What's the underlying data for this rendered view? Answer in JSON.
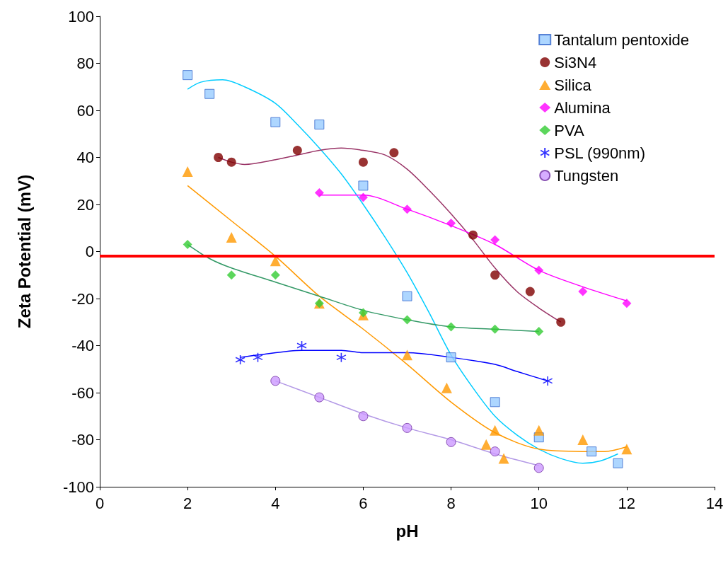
{
  "chart_data": {
    "type": "scatter",
    "xlabel": "pH",
    "ylabel": "Zeta Potential (mV)",
    "xlim": [
      0,
      14
    ],
    "xticks": [
      0,
      2,
      4,
      6,
      8,
      10,
      12,
      14
    ],
    "ylim": [
      -100,
      100
    ],
    "yticks": [
      -100,
      -80,
      -60,
      -40,
      -20,
      0,
      20,
      40,
      60,
      80,
      100
    ],
    "grid": false,
    "legend": "top right",
    "ref_lines": [
      {
        "axis": "y",
        "value": -2,
        "color": "#ff0000"
      }
    ],
    "series": [
      {
        "name": "Tantalum pentoxide",
        "color": "#99ccff",
        "marker": "square",
        "x": [
          2,
          2.5,
          4,
          5,
          6,
          7,
          8,
          9,
          10,
          11.2,
          11.8
        ],
        "values": [
          75,
          67,
          55,
          54,
          28,
          -19,
          -45,
          -64,
          -79,
          -85,
          -90
        ]
      },
      {
        "name": "Si3N4",
        "color": "#800000",
        "marker": "circle",
        "x": [
          2.7,
          3,
          4.5,
          6,
          6.7,
          8.5,
          9,
          9.8,
          10.5
        ],
        "values": [
          40,
          38,
          43,
          38,
          42,
          7,
          -10,
          -17,
          -30
        ]
      },
      {
        "name": "Silica",
        "color": "#ff9900",
        "marker": "triangle",
        "x": [
          2,
          3,
          4,
          5,
          6,
          7,
          7.9,
          8.8,
          9,
          9.2,
          10,
          11,
          12
        ],
        "values": [
          34,
          6,
          -4,
          -22,
          -27,
          -44,
          -58,
          -82,
          -76,
          -88,
          -76,
          -80,
          -84
        ]
      },
      {
        "name": "Alumina",
        "color": "#ff00ff",
        "marker": "diamond",
        "x": [
          5,
          6,
          7,
          8,
          9,
          10,
          11,
          12
        ],
        "values": [
          25,
          23,
          18,
          12,
          5,
          -8,
          -17,
          -22
        ]
      },
      {
        "name": "PVA",
        "color": "#33cc33",
        "marker": "diamond",
        "x": [
          2,
          3,
          4,
          5,
          6,
          7,
          8,
          9,
          10
        ],
        "values": [
          3,
          -10,
          -10,
          -22,
          -26,
          -29,
          -32,
          -33,
          -34
        ]
      },
      {
        "name": "PSL (990nm)",
        "color": "#0000ff",
        "marker": "cross",
        "x": [
          3.2,
          3.6,
          4.6,
          5.5,
          10.2
        ],
        "values": [
          -46,
          -45,
          -40,
          -45,
          -55
        ]
      },
      {
        "name": "Tungsten",
        "color": "#cc99ff",
        "marker": "circle",
        "x": [
          4,
          5,
          6,
          7,
          8,
          9,
          10
        ],
        "values": [
          -55,
          -62,
          -70,
          -75,
          -81,
          -85,
          -92
        ]
      },
      {
        "type": "line",
        "color": "#00ccff",
        "marker": "none",
        "x": [
          2,
          2.3,
          2.8,
          3.3,
          4,
          4.5,
          5,
          5.5,
          6,
          6.5,
          7,
          7.5,
          8,
          8.5,
          9,
          9.5,
          10,
          10.5,
          11,
          11.4,
          11.8
        ],
        "values": [
          69,
          72,
          73,
          70,
          63,
          54,
          44,
          33,
          20,
          6,
          -9,
          -26,
          -44,
          -58,
          -70,
          -78,
          -84,
          -88,
          -90,
          -89,
          -86
        ]
      },
      {
        "type": "line",
        "color": "#993366",
        "marker": "none",
        "x": [
          2.7,
          3,
          3.3,
          4,
          4.5,
          5,
          5.5,
          6,
          6.5,
          7,
          7.5,
          8,
          8.5,
          9,
          9.5,
          10,
          10.5
        ],
        "values": [
          40,
          38,
          37,
          39,
          41,
          43,
          44,
          43,
          41,
          35,
          26,
          16,
          5,
          -7,
          -17,
          -24,
          -30
        ]
      },
      {
        "type": "line",
        "color": "#ff9900",
        "marker": "none",
        "x": [
          2,
          3,
          4,
          5,
          6,
          7,
          8,
          9,
          10,
          11,
          11.5,
          12
        ],
        "values": [
          28,
          13,
          -2,
          -19,
          -33,
          -48,
          -64,
          -77,
          -84,
          -85,
          -85,
          -83
        ]
      },
      {
        "type": "line",
        "color": "#ff00ff",
        "marker": "none",
        "x": [
          5,
          6,
          7,
          8,
          9,
          10,
          11,
          12
        ],
        "values": [
          24,
          24,
          18,
          11,
          3,
          -8,
          -15,
          -21
        ]
      },
      {
        "type": "line",
        "color": "#339966",
        "marker": "none",
        "x": [
          2,
          2.5,
          3,
          4,
          5,
          6,
          7,
          8,
          9,
          10
        ],
        "values": [
          3,
          -3,
          -7,
          -13,
          -19,
          -25,
          -29,
          -32,
          -33,
          -34
        ]
      },
      {
        "type": "line",
        "color": "#0000ff",
        "marker": "none",
        "x": [
          3.2,
          3.6,
          4.6,
          5.5,
          6,
          7,
          8,
          9,
          9.5,
          10.2
        ],
        "values": [
          -45,
          -44,
          -42,
          -42,
          -43,
          -43,
          -45,
          -48,
          -51,
          -55
        ]
      },
      {
        "type": "line",
        "color": "#b399e6",
        "marker": "none",
        "x": [
          4,
          5,
          6,
          7,
          8,
          9,
          10
        ],
        "values": [
          -55,
          -62,
          -69,
          -75,
          -80,
          -86,
          -91
        ]
      }
    ]
  }
}
